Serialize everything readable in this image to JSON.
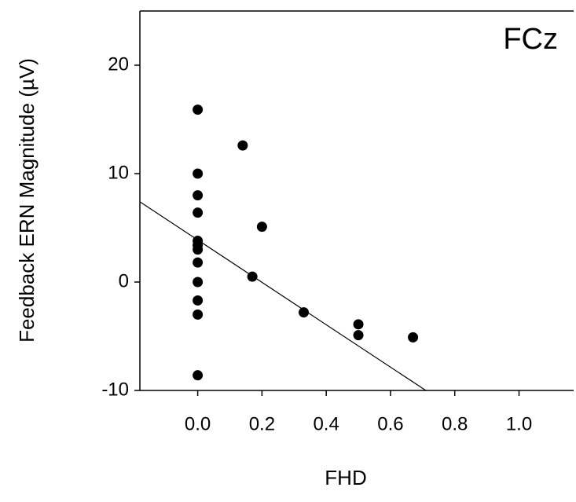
{
  "chart_data": {
    "type": "scatter",
    "x_label": "FHD",
    "y_label": "Feedback ERN Magnitude (µV)",
    "annotation": "FCz",
    "x": [
      0,
      0.14,
      0,
      0,
      0,
      0.2,
      0,
      0,
      0,
      0,
      0.17,
      0,
      0,
      0,
      0.33,
      0.5,
      0.5,
      0.67,
      0
    ],
    "y": [
      15.9,
      12.6,
      10,
      8.0,
      6.4,
      5.1,
      3.8,
      3.4,
      3.0,
      1.8,
      0.5,
      0,
      -1.7,
      -3.0,
      -2.8,
      -3.9,
      -4.9,
      -5.1,
      -8.6
    ],
    "color": "#000000",
    "fit_line": {
      "x": [
        -0.18,
        0.71
      ],
      "y": [
        7.4,
        -10
      ]
    },
    "xlim": [
      -0.18,
      1.17
    ],
    "ylim": [
      -10,
      25
    ],
    "xticks": [
      {
        "value": 0,
        "label": "0.0"
      },
      {
        "value": 0.2,
        "label": "0.2"
      },
      {
        "value": 0.4,
        "label": "0.4"
      },
      {
        "value": 0.6,
        "label": "0.6"
      },
      {
        "value": 0.8,
        "label": "0.8"
      },
      {
        "value": 1,
        "label": "1.0"
      }
    ],
    "yticks": [
      -10,
      0,
      10,
      20
    ]
  }
}
